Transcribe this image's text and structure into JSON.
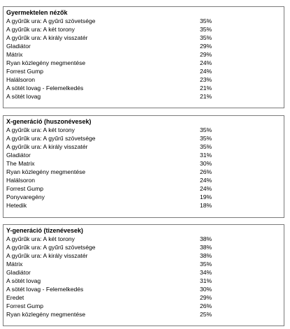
{
  "sections": [
    {
      "title": "Gyermektelen nézők",
      "rows": [
        {
          "name": "A gyűrűk ura: A gyűrű szövetsége",
          "pct": "35%"
        },
        {
          "name": "A gyűrűk ura: A két torony",
          "pct": "35%"
        },
        {
          "name": "A gyűrűk ura: A király visszatér",
          "pct": "35%"
        },
        {
          "name": "Gladiátor",
          "pct": "29%"
        },
        {
          "name": "Mátrix",
          "pct": "29%"
        },
        {
          "name": "Ryan közlegény megmentése",
          "pct": "24%"
        },
        {
          "name": "Forrest Gump",
          "pct": "24%"
        },
        {
          "name": "Halálsoron",
          "pct": "23%"
        },
        {
          "name": "A sötét lovag - Felemelkedés",
          "pct": "21%"
        },
        {
          "name": "A sötét lovag",
          "pct": "21%"
        }
      ]
    },
    {
      "title": "X-generáció (huszonévesek)",
      "rows": [
        {
          "name": "A gyűrűk ura: A két torony",
          "pct": "35%"
        },
        {
          "name": "A gyűrűk ura: A gyűrű szövetsége",
          "pct": "35%"
        },
        {
          "name": "A gyűrűk ura: A király visszatér",
          "pct": "35%"
        },
        {
          "name": "Gladiátor",
          "pct": "31%"
        },
        {
          "name": "The Matrix",
          "pct": "30%"
        },
        {
          "name": "Ryan közlegény megmentése",
          "pct": "26%"
        },
        {
          "name": "Halálsoron",
          "pct": "24%"
        },
        {
          "name": "Forrest Gump",
          "pct": "24%"
        },
        {
          "name": "Ponyvaregény",
          "pct": "19%"
        },
        {
          "name": "Hetedik",
          "pct": "18%"
        }
      ]
    },
    {
      "title": "Y-generáció (tizenévesek)",
      "rows": [
        {
          "name": "A gyűrűk ura: A két torony",
          "pct": "38%"
        },
        {
          "name": "A gyűrűk ura: A gyűrű szövetsége",
          "pct": "38%"
        },
        {
          "name": "A gyűrűk ura: A király visszatér",
          "pct": "38%"
        },
        {
          "name": "Mátrix",
          "pct": "35%"
        },
        {
          "name": "Gladiátor",
          "pct": "34%"
        },
        {
          "name": "A sötét lovag",
          "pct": "31%"
        },
        {
          "name": "A sötét lovag - Felemelkedés",
          "pct": "30%"
        },
        {
          "name": "Eredet",
          "pct": "29%"
        },
        {
          "name": "Forrest Gump",
          "pct": "26%"
        },
        {
          "name": "Ryan közlegény megmentése",
          "pct": "25%"
        }
      ]
    }
  ]
}
